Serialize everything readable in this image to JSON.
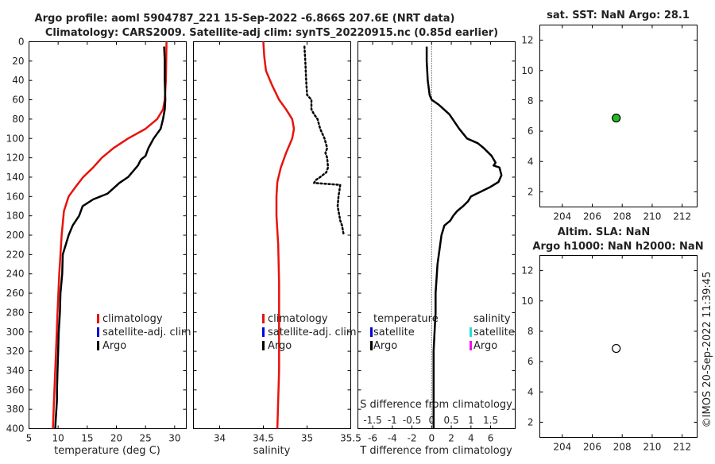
{
  "titles": {
    "line1": "Argo profile: aoml 5904787_221 15-Sep-2022 -6.866S 207.6E (NRT data)",
    "line2": "Climatology: CARS2009. Satellite-adj clim: synTS_20220915.nc (0.85d earlier)"
  },
  "chart_data": [
    {
      "type": "line",
      "panel": "temperature",
      "xlabel": "temperature (deg C)",
      "ylabel": "",
      "xlim": [
        5,
        32
      ],
      "ylim": [
        400,
        0
      ],
      "xticks": [
        5,
        10,
        15,
        20,
        25,
        30
      ],
      "yticks": [
        0,
        20,
        40,
        60,
        80,
        100,
        120,
        140,
        160,
        180,
        200,
        220,
        240,
        260,
        280,
        300,
        320,
        340,
        360,
        380,
        400
      ],
      "series": [
        {
          "name": "climatology",
          "color": "#e8120c",
          "style": "solid",
          "x": [
            28.6,
            28.5,
            28.3,
            28.0,
            27.0,
            25.0,
            22.0,
            19.5,
            17.5,
            16.0,
            14.3,
            13.0,
            11.8,
            11.0,
            10.6,
            10.2,
            9.9,
            9.7,
            9.5,
            9.3,
            9.1
          ],
          "y": [
            0,
            40,
            60,
            70,
            80,
            90,
            100,
            110,
            120,
            130,
            140,
            150,
            160,
            175,
            200,
            240,
            280,
            310,
            340,
            370,
            400
          ]
        },
        {
          "name": "Argo",
          "color": "#000000",
          "style": "solid",
          "x": [
            28.2,
            28.3,
            28.3,
            28.4,
            28.3,
            28.0,
            27.6,
            27.0,
            26.4,
            25.5,
            25.0,
            24.2,
            23.7,
            22.0,
            20.5,
            19.8,
            18.5,
            16.0,
            14.2,
            13.6,
            12.5,
            11.8,
            11.3,
            10.8,
            10.7,
            10.4,
            10.3,
            10.1,
            10.0,
            9.9,
            9.8,
            9.8,
            9.7,
            9.6,
            9.5
          ],
          "y": [
            5,
            20,
            40,
            60,
            70,
            80,
            90,
            95,
            100,
            110,
            118,
            122,
            128,
            140,
            146,
            150,
            157,
            163,
            170,
            180,
            190,
            200,
            210,
            220,
            240,
            260,
            280,
            300,
            320,
            340,
            360,
            370,
            380,
            390,
            400
          ]
        }
      ],
      "legend": [
        "climatology",
        "satellite-adj. clim",
        "Argo"
      ]
    },
    {
      "type": "line",
      "panel": "salinity",
      "xlabel": "salinity",
      "xlim": [
        33.7,
        35.5
      ],
      "ylim": [
        400,
        0
      ],
      "xticks": [
        34,
        34.5,
        35,
        35.5
      ],
      "series": [
        {
          "name": "climatology",
          "color": "#e8120c",
          "style": "solid",
          "x": [
            34.5,
            34.51,
            34.53,
            34.6,
            34.68,
            34.76,
            34.83,
            34.85,
            34.83,
            34.76,
            34.7,
            34.66,
            34.65,
            34.65,
            34.67,
            34.68,
            34.68,
            34.68,
            34.67,
            34.66
          ],
          "y": [
            0,
            15,
            30,
            45,
            60,
            70,
            80,
            90,
            100,
            115,
            130,
            145,
            160,
            180,
            210,
            250,
            300,
            340,
            370,
            400
          ]
        },
        {
          "name": "Argo",
          "color": "#000000",
          "style": "dotted",
          "x": [
            34.97,
            34.98,
            34.99,
            35.0,
            35.05,
            35.05,
            35.08,
            35.12,
            35.15,
            35.2,
            35.23,
            35.21,
            35.23,
            35.24,
            35.22,
            35.15,
            35.1,
            35.08,
            35.38,
            35.36,
            35.35,
            35.37,
            35.38,
            35.4,
            35.42
          ],
          "y": [
            5,
            20,
            40,
            55,
            60,
            70,
            75,
            80,
            90,
            100,
            110,
            115,
            120,
            130,
            135,
            140,
            143,
            146,
            148,
            160,
            170,
            180,
            185,
            190,
            200
          ]
        }
      ],
      "legend": [
        "climatology",
        "satellite-adj. clim",
        "Argo"
      ]
    },
    {
      "type": "line",
      "panel": "difference",
      "xlabel": "T difference from climatology",
      "xlabel_top": "S difference from climatology",
      "xlim": [
        -7.5,
        8.5
      ],
      "ylim": [
        400,
        0
      ],
      "xticks": [
        -6,
        -4,
        -2,
        0,
        2,
        4,
        6
      ],
      "sticks": [
        "-1.5",
        "-1",
        "-0.5",
        "0",
        "0.5",
        "1",
        "1.5"
      ],
      "series": [
        {
          "name": "T Argo",
          "color": "#000000",
          "style": "solid",
          "x": [
            -0.5,
            -0.5,
            -0.4,
            -0.2,
            0.0,
            0.7,
            1.8,
            2.8,
            3.6,
            4.7,
            5.3,
            6.1,
            6.5,
            6.3,
            6.9,
            7.1,
            6.8,
            6.0,
            5.0,
            4.0,
            3.7,
            3.2,
            2.6,
            2.2,
            1.9,
            1.3,
            1.0,
            0.8,
            0.6,
            0.4,
            0.4,
            0.3,
            0.2,
            0.2,
            0.2,
            0.2,
            0.2,
            0.2
          ],
          "y": [
            5,
            20,
            40,
            55,
            60,
            65,
            75,
            90,
            100,
            105,
            110,
            118,
            125,
            128,
            130,
            138,
            145,
            150,
            155,
            160,
            165,
            170,
            175,
            180,
            185,
            190,
            200,
            215,
            230,
            260,
            280,
            300,
            320,
            340,
            360,
            380,
            390,
            400
          ]
        }
      ],
      "legend_t": {
        "title": "temperature",
        "items": [
          "satellite",
          "Argo"
        ]
      },
      "legend_s": {
        "title": "salinity",
        "items": [
          "satellite",
          "Argo"
        ]
      }
    },
    {
      "type": "scatter",
      "panel": "sst",
      "title": "sat. SST: NaN Argo: 28.1",
      "xlim": [
        202.5,
        213
      ],
      "ylim": [
        1,
        13
      ],
      "xticks": [
        204,
        206,
        208,
        210,
        212
      ],
      "yticks": [
        2,
        4,
        6,
        8,
        10,
        12
      ],
      "points": [
        {
          "x": 207.6,
          "y": 6.866,
          "color": "#22bb22"
        }
      ]
    },
    {
      "type": "scatter",
      "panel": "sla",
      "title_line1": "Altim. SLA: NaN",
      "title_line2": "Argo h1000: NaN h2000: NaN",
      "xlim": [
        202.5,
        213
      ],
      "ylim": [
        1,
        13
      ],
      "xticks": [
        204,
        206,
        208,
        210,
        212
      ],
      "yticks": [
        2,
        4,
        6,
        8,
        10,
        12
      ],
      "points": [
        {
          "x": 207.6,
          "y": 6.866,
          "color": "#ffffff"
        }
      ]
    }
  ],
  "colors": {
    "climatology": "#e8120c",
    "satellite": "#0000dd",
    "argo": "#000000",
    "sat_salinity": "#22dddd",
    "argo_salinity": "#ee11ee"
  },
  "footer": {
    "stamp": "©IMOS 20-Sep-2022 11:39:45"
  }
}
